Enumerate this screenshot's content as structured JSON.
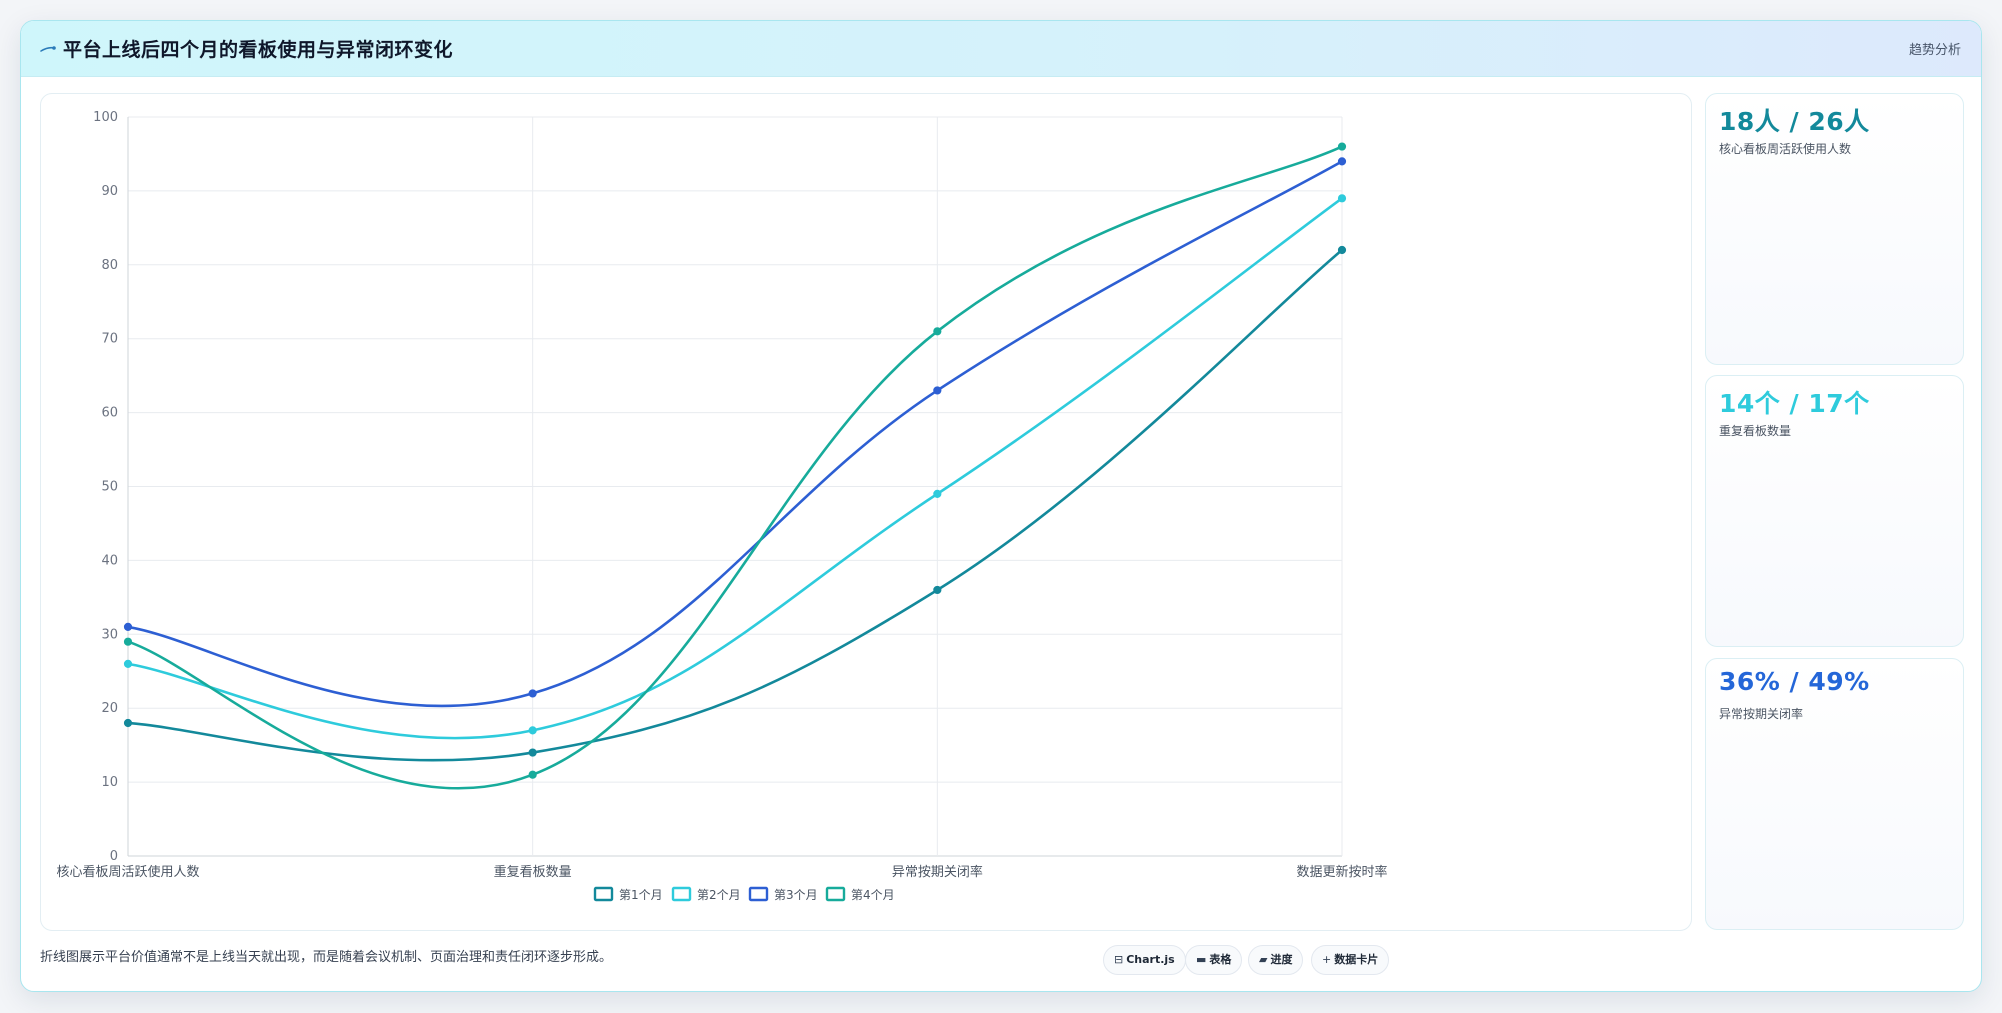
{
  "header": {
    "title": "平台上线后四个月的看板使用与异常闭环变化",
    "tag": "趋势分析",
    "logo_icon": "comet-icon"
  },
  "chart_data": {
    "type": "line",
    "title": "",
    "xlabel": "",
    "ylabel": "",
    "categories": [
      "核心看板周活跃使用人数",
      "重复看板数量",
      "异常按期关闭率",
      "数据更新按时率"
    ],
    "ylim": [
      0,
      100
    ],
    "yticks": [
      0,
      10,
      20,
      30,
      40,
      50,
      60,
      70,
      80,
      90,
      100
    ],
    "grid": true,
    "legend_position": "bottom",
    "series": [
      {
        "name": "第1个月",
        "color": "#13899b",
        "values": [
          18,
          14,
          36,
          82
        ]
      },
      {
        "name": "第2个月",
        "color": "#2ecbdc",
        "values": [
          26,
          17,
          49,
          89
        ]
      },
      {
        "name": "第3个月",
        "color": "#2d5fd3",
        "values": [
          31,
          22,
          63,
          94
        ]
      },
      {
        "name": "第4个月",
        "color": "#17ab9b",
        "values": [
          29,
          11,
          71,
          96
        ]
      }
    ]
  },
  "stats": [
    {
      "value": "18人 / 26人",
      "label": "核心看板周活跃使用人数",
      "color": "#13899b"
    },
    {
      "value": "14个 / 17个",
      "label": "重复看板数量",
      "color": "#2ecbdc"
    },
    {
      "value": "36% / 49%",
      "label": "异常按期关闭率",
      "color": "#2466d8"
    }
  ],
  "footer": {
    "note": "折线图展示平台价值通常不是上线当天就出现，而是随着会议机制、页面治理和责任闭环逐步形成。",
    "chips": [
      {
        "icon": "chart-icon",
        "glyph": "⊟",
        "label": "Chart.js"
      },
      {
        "icon": "table-icon",
        "glyph": "▬",
        "label": "表格"
      },
      {
        "icon": "progress-icon",
        "glyph": "▰",
        "label": "进度"
      },
      {
        "icon": "plus-icon",
        "glyph": "+",
        "label": "数据卡片"
      }
    ]
  }
}
